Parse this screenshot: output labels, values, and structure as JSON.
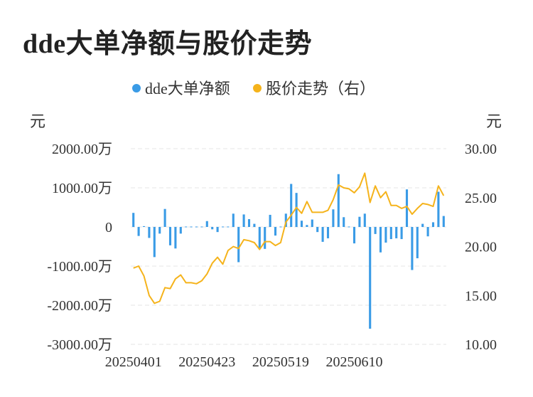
{
  "title": "dde大单净额与股价走势",
  "legend": [
    {
      "label": "dde大单净额",
      "color": "#3a9be6"
    },
    {
      "label": "股价走势（右）",
      "color": "#f5b31b"
    }
  ],
  "chart_data": {
    "type": "bar+line",
    "left_unit": "元",
    "right_unit": "元",
    "left_ticks": [
      "2000.00万",
      "1000.00万",
      "0",
      "-1000.00万",
      "-2000.00万",
      "-3000.00万"
    ],
    "right_ticks": [
      "30.00",
      "25.00",
      "20.00",
      "15.00",
      "10.00"
    ],
    "x_tick_labels": [
      "20250401",
      "20250423",
      "20250519",
      "20250610"
    ],
    "x_tick_indices": [
      0,
      14,
      28,
      42
    ],
    "y_left_range": [
      -3000,
      2000
    ],
    "y_right_range": [
      10,
      30
    ],
    "grid": true,
    "legend_position": "top-center",
    "series": [
      {
        "name": "dde大单净额",
        "type": "bar",
        "unit": "万元",
        "color": "#3a9be6",
        "values": [
          360,
          -230,
          20,
          -280,
          -770,
          -170,
          460,
          -470,
          -550,
          -170,
          10,
          10,
          10,
          10,
          150,
          -60,
          -130,
          10,
          10,
          340,
          -900,
          320,
          200,
          80,
          -560,
          -560,
          310,
          -220,
          10,
          340,
          1100,
          870,
          160,
          50,
          190,
          -130,
          -380,
          -290,
          450,
          1350,
          250,
          10,
          -420,
          260,
          340,
          -2600,
          -180,
          -650,
          -400,
          -310,
          -290,
          -310,
          960,
          -1100,
          -800,
          80,
          -240,
          120,
          900,
          280
        ]
      },
      {
        "name": "股价走势（右）",
        "type": "line",
        "color": "#f5b31b",
        "values": [
          17.8,
          18.0,
          17.0,
          15.0,
          14.2,
          14.4,
          15.8,
          15.7,
          16.7,
          17.1,
          16.3,
          16.3,
          16.2,
          16.5,
          17.2,
          18.3,
          18.9,
          18.2,
          19.6,
          20.0,
          19.8,
          20.7,
          20.6,
          20.4,
          19.7,
          20.5,
          20.5,
          20.1,
          20.4,
          22.5,
          23.2,
          24.0,
          23.4,
          24.6,
          23.5,
          23.5,
          23.5,
          23.7,
          24.8,
          26.3,
          26.0,
          25.9,
          25.5,
          26.1,
          27.5,
          24.5,
          26.2,
          25.0,
          25.6,
          24.2,
          24.2,
          23.9,
          24.1,
          23.3,
          23.9,
          24.4,
          24.3,
          24.1,
          26.2,
          25.2
        ]
      }
    ]
  }
}
